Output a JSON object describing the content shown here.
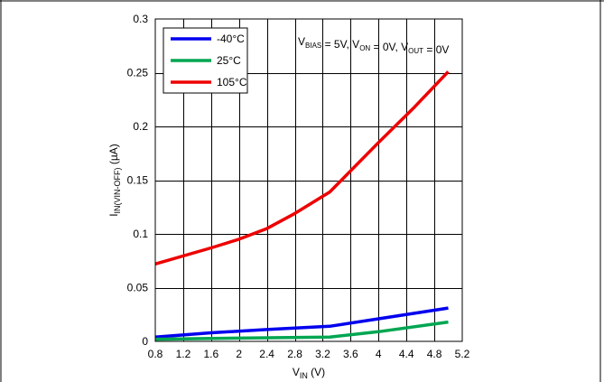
{
  "chart_data": {
    "type": "line",
    "title": "",
    "xlabel": {
      "main": "V",
      "sub": "IN",
      "suffix": " (V)"
    },
    "ylabel": {
      "main": "I",
      "sub": "IN(VIN-OFF)",
      "suffix": " (µA)"
    },
    "xlim": [
      0.8,
      5.2
    ],
    "ylim": [
      0,
      0.3
    ],
    "xticks": [
      0.8,
      1.2,
      1.6,
      2,
      2.4,
      2.8,
      3.2,
      3.6,
      4,
      4.4,
      4.8,
      5.2
    ],
    "xtick_labels": [
      "0.8",
      "1.2",
      "1.6",
      "2",
      "2.4",
      "2.8",
      "3.2",
      "3.6",
      "4",
      "4.4",
      "4.8",
      "5.2"
    ],
    "yticks": [
      0,
      0.05,
      0.1,
      0.15,
      0.2,
      0.25,
      0.3
    ],
    "ytick_labels": [
      "0",
      "0.05",
      "0.1",
      "0.15",
      "0.2",
      "0.25",
      "0.3"
    ],
    "grid": true,
    "legend_position": "top-left",
    "annotation": [
      {
        "text": "V",
        "sub": "BIAS"
      },
      {
        "text": "  = 5V, V",
        "sub": "ON"
      },
      {
        "text": " = 0V, V",
        "sub": "OUT"
      },
      {
        "text": " = 0V",
        "sub": ""
      }
    ],
    "series": [
      {
        "name": "-40°C",
        "color": "#0000ee",
        "x": [
          0.8,
          1.6,
          2.4,
          3.3,
          4.0,
          5.0
        ],
        "y": [
          0.004,
          0.008,
          0.011,
          0.014,
          0.021,
          0.031
        ]
      },
      {
        "name": "25°C",
        "color": "#00a651",
        "x": [
          0.8,
          2.0,
          3.3,
          4.0,
          5.0
        ],
        "y": [
          0.002,
          0.003,
          0.004,
          0.009,
          0.018
        ]
      },
      {
        "name": "105°C",
        "color": "#ee0000",
        "x": [
          0.8,
          1.6,
          2.0,
          2.4,
          2.8,
          3.3,
          4.0,
          4.5,
          5.0
        ],
        "y": [
          0.072,
          0.087,
          0.095,
          0.105,
          0.119,
          0.139,
          0.185,
          0.217,
          0.251
        ]
      }
    ]
  }
}
